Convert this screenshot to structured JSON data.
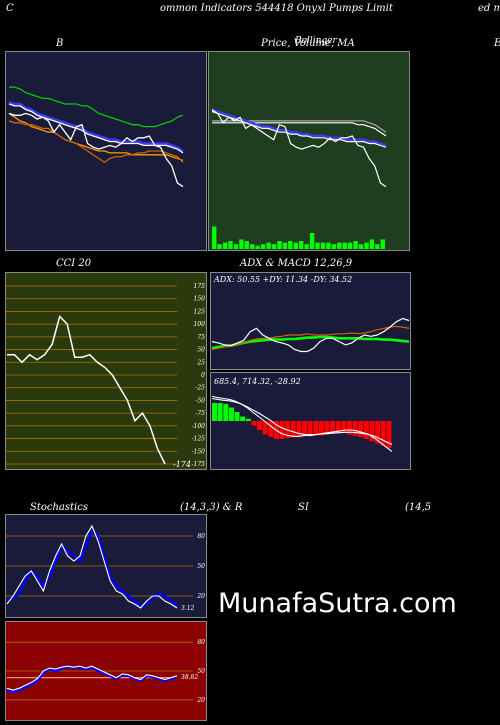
{
  "header": {
    "left": "C",
    "center": "ommon  Indicators 544418  Onyxl Pumps Limit",
    "right": "ed m"
  },
  "titles": {
    "b": "B",
    "price": "Price,  Volume,  MA",
    "price_overlay": "Bollinger",
    "far_right": "E",
    "cci": "CCI 20",
    "adx_macd": "ADX  & MACD 12,26,9",
    "stoch": "Stochastics",
    "stoch_params": "(14,3,3) & R",
    "si": "SI",
    "rsi_params": "(14,5"
  },
  "watermark": "MunafaSutra.com",
  "colors": {
    "navy": "#1a1a3a",
    "darkgreen": "#1f3d1f",
    "olive": "#2a3a0c",
    "maroon": "#8b0000"
  },
  "chart_data": [
    {
      "type": "line",
      "name": "bollinger-panel",
      "title": "B",
      "ylim": [
        0,
        100
      ],
      "series": [
        {
          "color": "#00cc00",
          "values": [
            84,
            84,
            83,
            81,
            80,
            79,
            78,
            78,
            77,
            76,
            75,
            75,
            75,
            74,
            74,
            72,
            70,
            69,
            68,
            67,
            66,
            65,
            64,
            64,
            63,
            63,
            63,
            64,
            65,
            66,
            68,
            69
          ]
        },
        {
          "color": "#3a3aff",
          "values": [
            76,
            75,
            75,
            73,
            72,
            70,
            69,
            68,
            67,
            66,
            65,
            64,
            63,
            62,
            60,
            59,
            58,
            57,
            56,
            56,
            55,
            55,
            55,
            55,
            54,
            54,
            54,
            54,
            54,
            53,
            52,
            50
          ]
        },
        {
          "color": "#ffffff",
          "values": [
            75,
            74,
            74,
            72,
            71,
            69,
            68,
            67,
            66,
            65,
            64,
            63,
            62,
            61,
            59,
            58,
            57,
            56,
            55,
            55,
            54,
            54,
            54,
            54,
            53,
            53,
            53,
            53,
            53,
            52,
            51,
            49
          ]
        },
        {
          "color": "#ff9900",
          "values": [
            70,
            68,
            66,
            65,
            63,
            62,
            61,
            60,
            60,
            58,
            56,
            55,
            54,
            53,
            52,
            51,
            50,
            50,
            49,
            49,
            49,
            49,
            48,
            48,
            48,
            48,
            48,
            48,
            48,
            47,
            46,
            45
          ]
        },
        {
          "color": "#cc6600",
          "values": [
            66,
            65,
            65,
            64,
            64,
            63,
            62,
            62,
            60,
            58,
            56,
            55,
            54,
            52,
            50,
            48,
            46,
            44,
            46,
            47,
            47,
            48,
            48,
            49,
            49,
            50,
            50,
            50,
            49,
            48,
            47,
            44
          ]
        },
        {
          "color": "#ffffff",
          "values": [
            70,
            69,
            69,
            70,
            69,
            67,
            68,
            66,
            60,
            64,
            60,
            56,
            63,
            64,
            54,
            52,
            51,
            52,
            53,
            52,
            54,
            57,
            55,
            57,
            57,
            58,
            53,
            52,
            46,
            42,
            33,
            31
          ]
        }
      ]
    },
    {
      "type": "line",
      "name": "price-panel",
      "title": "Price,  Volume,  MA",
      "ylim": [
        0,
        100
      ],
      "series": [
        {
          "color": "#aaaaaa",
          "values": [
            66,
            66,
            66,
            66,
            66,
            66,
            66,
            66,
            66,
            66,
            66,
            66,
            66,
            66,
            66,
            66,
            66,
            66,
            66,
            66,
            66,
            66,
            66,
            66,
            66,
            66,
            66,
            66,
            65,
            64,
            62,
            60
          ]
        },
        {
          "color": "#ffffff",
          "values": [
            65,
            65,
            65,
            65,
            65,
            65,
            65,
            65,
            65,
            65,
            65,
            65,
            65,
            65,
            65,
            65,
            65,
            65,
            65,
            65,
            65,
            65,
            65,
            65,
            65,
            65,
            64,
            64,
            63,
            62,
            60,
            58
          ]
        },
        {
          "color": "#3a3aff",
          "values": [
            72,
            71,
            70,
            69,
            68,
            67,
            66,
            65,
            64,
            63,
            63,
            62,
            61,
            61,
            60,
            60,
            59,
            59,
            58,
            58,
            58,
            57,
            57,
            57,
            56,
            56,
            56,
            56,
            55,
            55,
            54,
            53
          ]
        },
        {
          "color": "#ffffff",
          "values": [
            71,
            70,
            69,
            68,
            67,
            66,
            65,
            64,
            63,
            62,
            62,
            61,
            60,
            60,
            59,
            59,
            58,
            58,
            57,
            57,
            57,
            56,
            56,
            56,
            55,
            55,
            55,
            55,
            54,
            54,
            53,
            52
          ]
        },
        {
          "color": "#ffffff",
          "values": [
            72,
            70,
            65,
            68,
            66,
            68,
            62,
            64,
            62,
            60,
            58,
            56,
            64,
            63,
            54,
            52,
            51,
            52,
            53,
            52,
            54,
            57,
            55,
            57,
            57,
            58,
            53,
            52,
            46,
            42,
            33,
            31
          ]
        }
      ],
      "volume": [
        14,
        3,
        4,
        5,
        3,
        6,
        5,
        3,
        2,
        3,
        4,
        3,
        5,
        4,
        5,
        4,
        5,
        3,
        10,
        4,
        4,
        4,
        3,
        4,
        4,
        4,
        5,
        3,
        4,
        6,
        3,
        6
      ]
    },
    {
      "type": "line",
      "name": "cci-panel",
      "title": "CCI 20",
      "ylim": [
        -175,
        175
      ],
      "yticks": [
        175,
        150,
        125,
        100,
        75,
        50,
        25,
        0,
        -25,
        -50,
        -75,
        -100,
        -125,
        -150,
        -175
      ],
      "values": [
        40,
        40,
        25,
        40,
        30,
        40,
        60,
        115,
        100,
        35,
        35,
        40,
        25,
        15,
        0,
        -25,
        -50,
        -90,
        -75,
        -100,
        -145,
        -175
      ],
      "last_label": "-174"
    },
    {
      "type": "line",
      "name": "adx-panel",
      "title": "ADX  & MACD 12,26,9",
      "label": "ADX: 50.55  +DY: 11.34  -DY: 34.52",
      "ylim": [
        0,
        100
      ],
      "series": [
        {
          "color": "#00ff00",
          "values": [
            30,
            32,
            33,
            34,
            36,
            38,
            40,
            41,
            42,
            43,
            43,
            43,
            44,
            44,
            45,
            46,
            46,
            47,
            47,
            46,
            45,
            45,
            45,
            45,
            44,
            44,
            44,
            43,
            43,
            42,
            41,
            40
          ]
        },
        {
          "color": "#cc6600",
          "values": [
            28,
            30,
            32,
            33,
            35,
            38,
            42,
            44,
            45,
            45,
            47,
            48,
            50,
            50,
            50,
            52,
            50,
            50,
            50,
            51,
            52,
            52,
            53,
            52,
            53,
            55,
            58,
            60,
            62,
            63,
            62,
            60
          ]
        },
        {
          "color": "#ffffff",
          "values": [
            40,
            38,
            35,
            34,
            38,
            42,
            55,
            60,
            50,
            45,
            40,
            38,
            35,
            28,
            25,
            25,
            30,
            40,
            45,
            45,
            40,
            35,
            38,
            45,
            50,
            48,
            50,
            55,
            62,
            70,
            75,
            72
          ]
        }
      ]
    },
    {
      "type": "bar",
      "name": "macd-panel",
      "label": "685.4,  714.32,  -28.92",
      "ylim": [
        -100,
        100
      ],
      "histogram": [
        40,
        40,
        38,
        30,
        20,
        10,
        5,
        -10,
        -20,
        -30,
        -35,
        -40,
        -40,
        -38,
        -36,
        -35,
        -34,
        -34,
        -33,
        -32,
        -30,
        -28,
        -26,
        -25,
        -30,
        -33,
        -36,
        -40,
        -45,
        -50,
        -55,
        -60
      ],
      "series": [
        {
          "color": "#ffffff",
          "values": [
            55,
            52,
            50,
            48,
            44,
            38,
            30,
            20,
            10,
            0,
            -10,
            -20,
            -28,
            -32,
            -34,
            -34,
            -32,
            -32,
            -30,
            -28,
            -26,
            -24,
            -22,
            -20,
            -20,
            -22,
            -26,
            -30,
            -38,
            -48,
            -58,
            -68
          ]
        },
        {
          "color": "#ffffff",
          "values": [
            50,
            48,
            46,
            45,
            42,
            38,
            32,
            25,
            18,
            10,
            2,
            -8,
            -15,
            -20,
            -24,
            -28,
            -30,
            -30,
            -30,
            -29,
            -28,
            -27,
            -26,
            -25,
            -25,
            -26,
            -28,
            -30,
            -34,
            -40,
            -46,
            -52
          ]
        }
      ]
    },
    {
      "type": "line",
      "name": "stochastics-panel",
      "title": "Stochastics",
      "ylim": [
        0,
        100
      ],
      "yticks": [
        80,
        50,
        20
      ],
      "last_label": "3.12",
      "series": [
        {
          "color": "#0000ff",
          "values": [
            15,
            18,
            22,
            35,
            45,
            40,
            30,
            40,
            55,
            70,
            65,
            60,
            55,
            70,
            85,
            80,
            60,
            40,
            30,
            25,
            20,
            15,
            10,
            12,
            18,
            22,
            20,
            15,
            10
          ]
        },
        {
          "color": "#ffffff",
          "values": [
            12,
            20,
            30,
            40,
            45,
            35,
            25,
            45,
            60,
            72,
            60,
            55,
            60,
            80,
            90,
            75,
            55,
            35,
            25,
            22,
            15,
            12,
            8,
            15,
            20,
            20,
            15,
            12,
            8
          ]
        }
      ]
    },
    {
      "type": "line",
      "name": "rsi-panel",
      "title": "SI",
      "ylim": [
        0,
        100
      ],
      "yticks": [
        80,
        50,
        20
      ],
      "last_label": "38.82",
      "series": [
        {
          "color": "#ffaa77",
          "values": [
            43,
            43,
            43,
            43,
            43,
            43,
            43,
            43,
            43,
            43,
            43,
            43,
            43,
            43,
            43,
            43,
            43,
            43,
            43,
            43,
            43,
            43,
            43,
            43,
            43,
            43,
            43,
            43,
            43
          ]
        },
        {
          "color": "#0000ff",
          "values": [
            30,
            28,
            30,
            33,
            36,
            40,
            48,
            52,
            50,
            52,
            55,
            53,
            54,
            52,
            54,
            50,
            48,
            45,
            42,
            46,
            45,
            42,
            40,
            45,
            44,
            42,
            40,
            42,
            44
          ]
        },
        {
          "color": "#ffffff",
          "values": [
            32,
            30,
            32,
            35,
            38,
            42,
            50,
            53,
            52,
            54,
            55,
            54,
            55,
            53,
            55,
            52,
            49,
            46,
            43,
            47,
            46,
            43,
            41,
            46,
            45,
            43,
            41,
            43,
            45
          ]
        }
      ]
    }
  ]
}
